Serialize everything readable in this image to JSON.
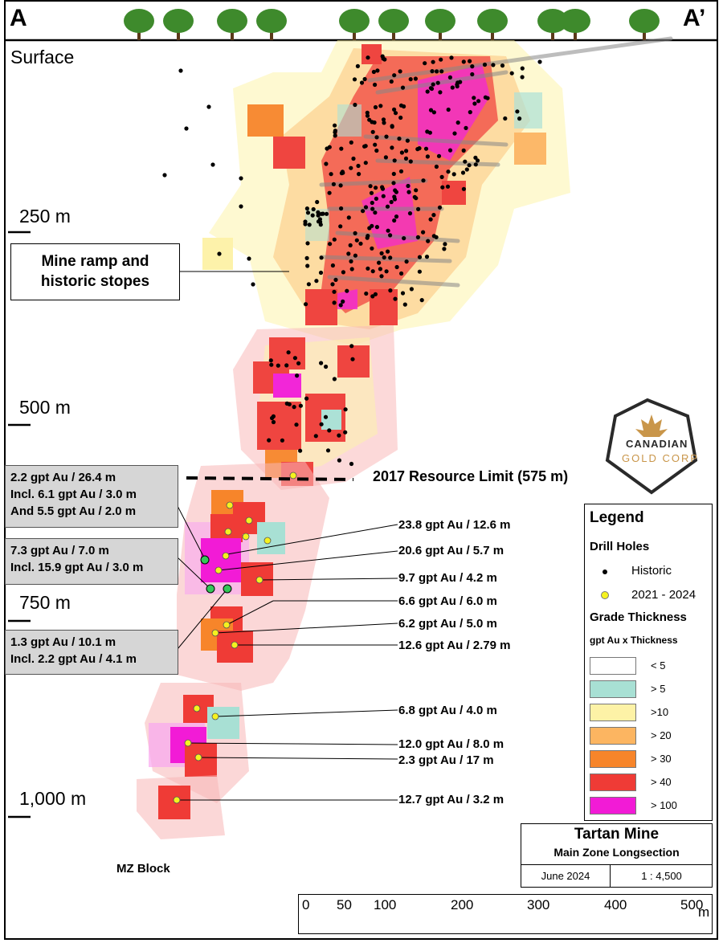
{
  "section": {
    "left_label": "A",
    "right_label": "A’",
    "surface_label": "Surface"
  },
  "depth_labels": [
    "250 m",
    "500 m",
    "750 m",
    "1,000 m"
  ],
  "annotations": {
    "mine_ramp_line1": "Mine ramp and",
    "mine_ramp_line2": "historic stopes",
    "resource_limit": "2017 Resource Limit (575 m)",
    "mz_block": "MZ Block"
  },
  "grouped_intercepts": [
    {
      "lines": [
        "2.2 gpt Au / 26.4 m",
        "Incl. 6.1 gpt Au / 3.0 m",
        "And 5.5 gpt Au / 2.0 m"
      ]
    },
    {
      "lines": [
        "7.3 gpt Au / 7.0 m",
        "Incl. 15.9 gpt Au / 3.0 m"
      ]
    },
    {
      "lines": [
        "1.3 gpt Au / 10.1 m",
        "Incl. 2.2 gpt Au / 4.1 m"
      ]
    }
  ],
  "intercepts": [
    "23.8 gpt Au / 12.6 m",
    "20.6 gpt Au / 5.7 m",
    "9.7 gpt Au / 4.2 m",
    "6.6 gpt Au / 6.0 m",
    "6.2 gpt Au / 5.0 m",
    "12.6 gpt Au / 2.79 m",
    "6.8 gpt Au / 4.0 m",
    "12.0 gpt Au / 8.0 m",
    "2.3 gpt Au / 17 m",
    "12.7 gpt Au / 3.2 m"
  ],
  "logo": {
    "line1": "CANADIAN",
    "line2": "GOLD CORP",
    "gold": "#c9964a",
    "dark": "#2a2a2a"
  },
  "legend": {
    "title": "Legend",
    "drill_holes_title": "Drill Holes",
    "historic_label": "Historic",
    "recent_label": "2021 - 2024",
    "grade_title": "Grade Thickness",
    "grade_subtitle": "gpt Au x Thickness",
    "classes": [
      {
        "label": "< 5",
        "color": "#ffffff"
      },
      {
        "label": "> 5",
        "color": "#a8e0d4"
      },
      {
        "label": ">10",
        "color": "#fdf2a6"
      },
      {
        "label": "> 20",
        "color": "#fcb561"
      },
      {
        "label": "> 30",
        "color": "#f7852a"
      },
      {
        "label": "> 40",
        "color": "#ef3b36"
      },
      {
        "label": "> 100",
        "color": "#f21bd6"
      }
    ]
  },
  "title_block": {
    "title": "Tartan Mine",
    "subtitle": "Main Zone Longsection",
    "date": "June 2024",
    "scale": "1 : 4,500"
  },
  "scale_bar": {
    "ticks": [
      "0",
      "50",
      "100",
      "200",
      "300",
      "400",
      "500"
    ],
    "unit": "m"
  }
}
